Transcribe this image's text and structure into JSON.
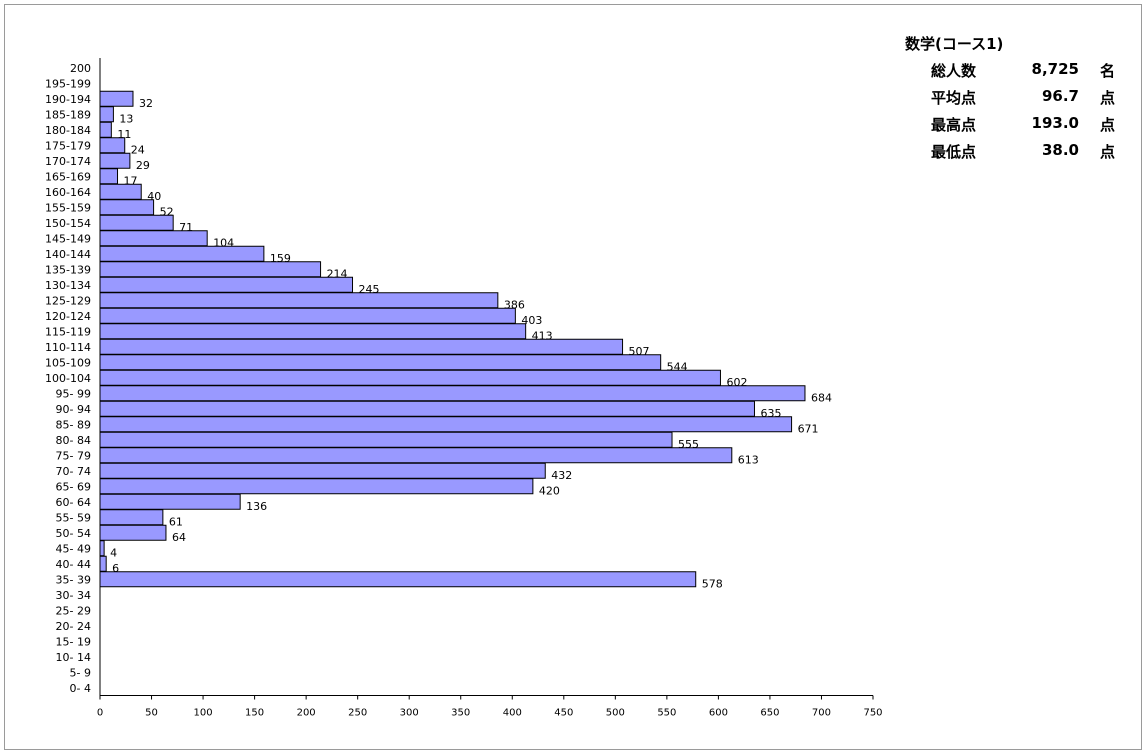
{
  "stats": {
    "title": "数学(コース1)",
    "rows": [
      {
        "label": "総人数",
        "value": "8,725",
        "unit": "名"
      },
      {
        "label": "平均点",
        "value": "96.7",
        "unit": "点"
      },
      {
        "label": "最高点",
        "value": "193.0",
        "unit": "点"
      },
      {
        "label": "最低点",
        "value": "38.0",
        "unit": "点"
      }
    ]
  },
  "colors": {
    "bar_fill": "#9999ff",
    "bar_stroke": "#000000"
  },
  "chart_data": {
    "type": "bar",
    "orientation": "horizontal",
    "title": "",
    "xlabel": "",
    "ylabel": "",
    "xlim": [
      0,
      750
    ],
    "xticks": [
      0,
      50,
      100,
      150,
      200,
      250,
      300,
      350,
      400,
      450,
      500,
      550,
      600,
      650,
      700,
      750
    ],
    "categories": [
      "200",
      "195-199",
      "190-194",
      "185-189",
      "180-184",
      "175-179",
      "170-174",
      "165-169",
      "160-164",
      "155-159",
      "150-154",
      "145-149",
      "140-144",
      "135-139",
      "130-134",
      "125-129",
      "120-124",
      "115-119",
      "110-114",
      "105-109",
      "100-104",
      "95- 99",
      "90- 94",
      "85- 89",
      "80- 84",
      "75- 79",
      "70- 74",
      "65- 69",
      "60- 64",
      "55- 59",
      "50- 54",
      "45- 49",
      "40- 44",
      "35- 39",
      "30- 34",
      "25- 29",
      "20- 24",
      "15- 19",
      "10- 14",
      "5- 9",
      "0- 4"
    ],
    "values": [
      0,
      0,
      32,
      13,
      11,
      24,
      29,
      17,
      40,
      52,
      71,
      104,
      159,
      214,
      245,
      386,
      403,
      413,
      507,
      544,
      602,
      684,
      635,
      671,
      555,
      613,
      432,
      420,
      136,
      61,
      64,
      4,
      6,
      578,
      0,
      0,
      0,
      0,
      0,
      0,
      0
    ]
  }
}
